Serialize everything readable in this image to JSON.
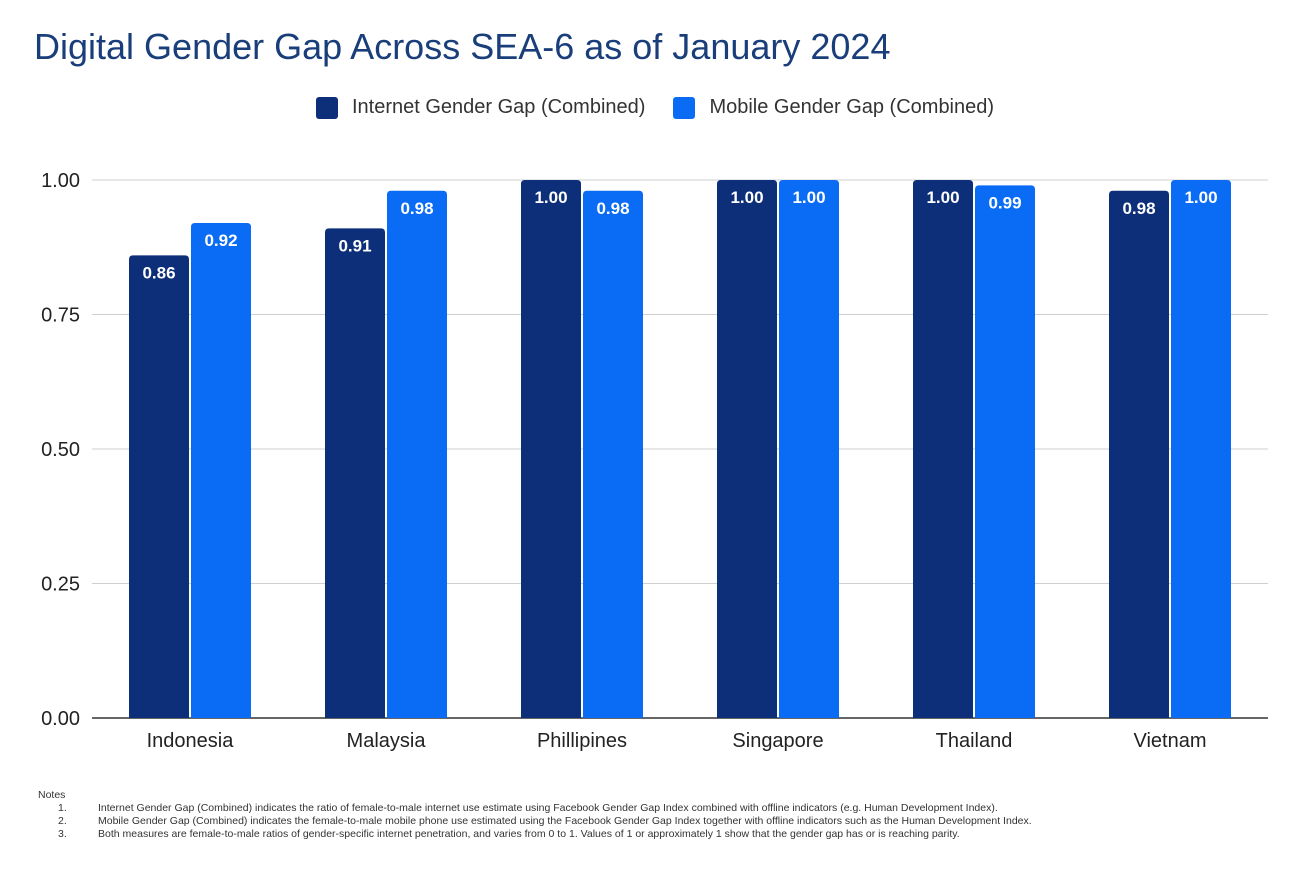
{
  "chart_data": {
    "type": "bar",
    "title": "Digital Gender Gap Across SEA-6 as of January 2024",
    "categories": [
      "Indonesia",
      "Malaysia",
      "Phillipines",
      "Singapore",
      "Thailand",
      "Vietnam"
    ],
    "series": [
      {
        "name": "Internet Gender Gap (Combined)",
        "values": [
          0.86,
          0.91,
          1.0,
          1.0,
          1.0,
          0.98
        ],
        "labels": [
          "0.86",
          "0.91",
          "1.00",
          "1.00",
          "1.00",
          "0.98"
        ],
        "color": "#0d2f7a"
      },
      {
        "name": "Mobile Gender Gap (Combined)",
        "values": [
          0.92,
          0.98,
          0.98,
          1.0,
          0.99,
          1.0
        ],
        "labels": [
          "0.92",
          "0.98",
          "0.98",
          "1.00",
          "0.99",
          "1.00"
        ],
        "color": "#0a6cf5"
      }
    ],
    "ylim": [
      0,
      1
    ],
    "yticks": [
      "0.00",
      "0.25",
      "0.50",
      "0.75",
      "1.00"
    ],
    "grid": true,
    "legend": "top-center",
    "xlabel": "",
    "ylabel": ""
  },
  "notes": {
    "heading": "Notes",
    "items": [
      {
        "num": "1.",
        "text": "Internet Gender Gap (Combined) indicates the ratio of female-to-male internet use estimate using Facebook Gender Gap Index combined with offline indicators (e.g. Human Development Index)."
      },
      {
        "num": "2.",
        "text": "Mobile Gender Gap (Combined) indicates the female-to-male mobile phone use estimated using the Facebook Gender Gap Index together with offline indicators such as the Human Development Index."
      },
      {
        "num": "3.",
        "text": "Both measures are female-to-male ratios of gender-specific internet penetration, and varies from 0 to 1. Values of 1 or approximately 1 show that the gender gap has or is reaching parity."
      }
    ]
  }
}
